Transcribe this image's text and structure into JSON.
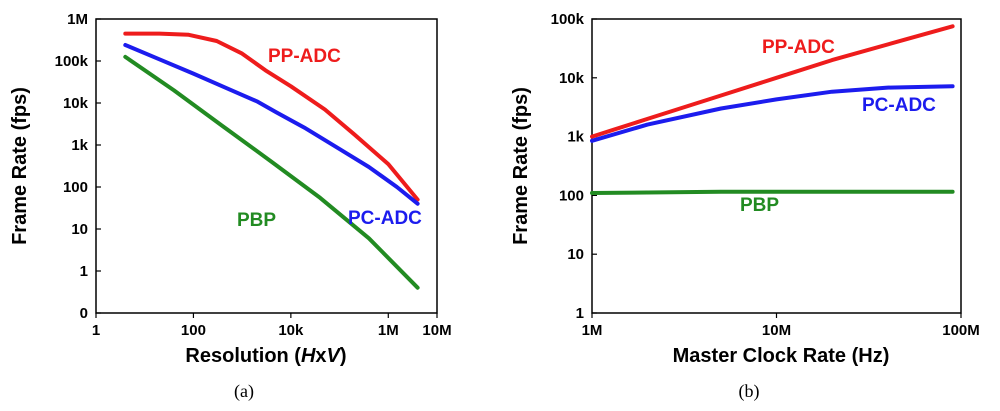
{
  "chart_data": [
    {
      "type": "line",
      "caption": "(a)",
      "ylabel": "Frame Rate (fps)",
      "xlabel_prefix": "Resolution (",
      "xlabel_H": "H",
      "xlabel_x": "x",
      "xlabel_V": "V",
      "xlabel_suffix": ")",
      "xscale": "log",
      "yscale": "log",
      "xlim": [
        1,
        10000000
      ],
      "ylim_note": "bottom tick labelled 0",
      "x_ticks": [
        {
          "value": 1,
          "label": "1"
        },
        {
          "value": 100,
          "label": "100"
        },
        {
          "value": 10000,
          "label": "10k"
        },
        {
          "value": 1000000,
          "label": "1M"
        },
        {
          "value": 10000000,
          "label": "10M"
        }
      ],
      "y_ticks": [
        "0",
        "1",
        "10",
        "100",
        "1k",
        "10k",
        "100k",
        "1M"
      ],
      "series": [
        {
          "name": "PP-ADC",
          "color": "#ee1c1c",
          "x": [
            4,
            20,
            80,
            300,
            1000,
            3000,
            10000,
            50000,
            200000,
            1000000,
            4000000
          ],
          "y": [
            450000,
            450000,
            420000,
            300000,
            150000,
            60000,
            25000,
            7000,
            1800,
            350,
            50
          ]
        },
        {
          "name": "PC-ADC",
          "color": "#1c1cee",
          "x": [
            4,
            20,
            100,
            500,
            2000,
            5000,
            20000,
            100000,
            400000,
            1500000,
            4000000
          ],
          "y": [
            240000,
            110000,
            50000,
            22000,
            11000,
            6000,
            2500,
            800,
            300,
            100,
            40
          ]
        },
        {
          "name": "PBP",
          "color": "#228b22",
          "x": [
            4,
            40,
            400,
            4000,
            40000,
            400000,
            4000000
          ],
          "y": [
            125000,
            20000,
            2800,
            400,
            55,
            6,
            0.4
          ]
        }
      ]
    },
    {
      "type": "line",
      "caption": "(b)",
      "ylabel": "Frame Rate (fps)",
      "xlabel": "Master Clock Rate (Hz)",
      "xscale": "log",
      "yscale": "log",
      "xlim": [
        1000000,
        100000000
      ],
      "ylim": [
        1,
        100000
      ],
      "x_ticks": [
        {
          "value": 1000000,
          "label": "1M"
        },
        {
          "value": 10000000,
          "label": "10M"
        },
        {
          "value": 100000000,
          "label": "100M"
        }
      ],
      "y_ticks": [
        "1",
        "10",
        "100",
        "1k",
        "10k",
        "100k"
      ],
      "series": [
        {
          "name": "PP-ADC",
          "color": "#ee1c1c",
          "x": [
            1000000,
            2000000,
            5000000,
            10000000,
            20000000,
            50000000,
            90000000
          ],
          "y": [
            1000,
            2000,
            5000,
            10000,
            20000,
            45000,
            75000
          ]
        },
        {
          "name": "PC-ADC",
          "color": "#1c1cee",
          "x": [
            1000000,
            2000000,
            5000000,
            10000000,
            20000000,
            40000000,
            90000000
          ],
          "y": [
            850,
            1600,
            3000,
            4300,
            5800,
            6800,
            7200
          ]
        },
        {
          "name": "PBP",
          "color": "#228b22",
          "x": [
            1000000,
            2000000,
            5000000,
            10000000,
            20000000,
            50000000,
            90000000
          ],
          "y": [
            110,
            112,
            115,
            115,
            115,
            115,
            115
          ]
        }
      ]
    }
  ]
}
